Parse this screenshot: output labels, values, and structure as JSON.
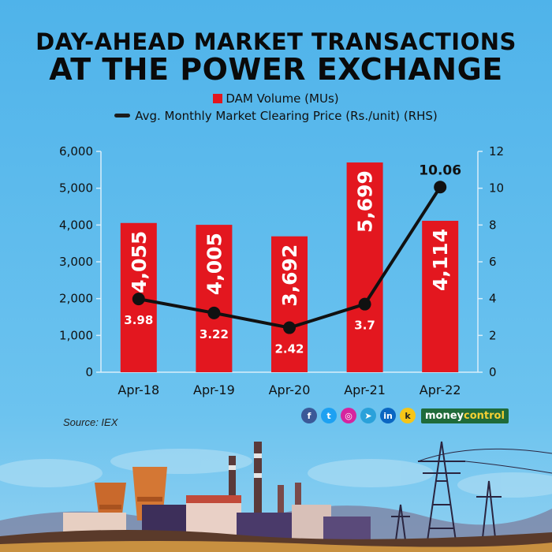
{
  "title_line1": "DAY-AHEAD MARKET TRANSACTIONS",
  "title_line2": "AT THE POWER EXCHANGE",
  "source": "Source: IEX",
  "brand": {
    "part1": "money",
    "part2": "control"
  },
  "social_icons": [
    "facebook-icon",
    "twitter-icon",
    "instagram-icon",
    "telegram-icon",
    "linkedin-icon",
    "koo-icon"
  ],
  "colors": {
    "bar": "#e3171f",
    "line": "#111111",
    "sky": "#58b8ec",
    "grid": "#c8e4f6"
  },
  "chart_data": {
    "type": "bar+line",
    "categories": [
      "Apr-18",
      "Apr-19",
      "Apr-20",
      "Apr-21",
      "Apr-22"
    ],
    "series": [
      {
        "name": "DAM Volume (MUs)",
        "type": "bar",
        "axis": "left",
        "values": [
          4055,
          4005,
          3692,
          5699,
          4114
        ],
        "labels": [
          "4,055",
          "4,005",
          "3,692",
          "5,699",
          "4,114"
        ]
      },
      {
        "name": "Avg. Monthly Market Clearing Price (Rs./unit) (RHS)",
        "type": "line",
        "axis": "right",
        "values": [
          3.98,
          3.22,
          2.42,
          3.7,
          10.06
        ],
        "labels": [
          "3.98",
          "3.22",
          "2.42",
          "3.7",
          "10.06"
        ]
      }
    ],
    "y_left": {
      "min": 0,
      "max": 6000,
      "ticks": [
        "0",
        "1,000",
        "2,000",
        "3,000",
        "4,000",
        "5,000",
        "6,000"
      ]
    },
    "y_right": {
      "min": 0,
      "max": 12,
      "ticks": [
        "0",
        "2",
        "4",
        "6",
        "8",
        "10",
        "12"
      ]
    },
    "grid": false,
    "legend_position": "top"
  }
}
